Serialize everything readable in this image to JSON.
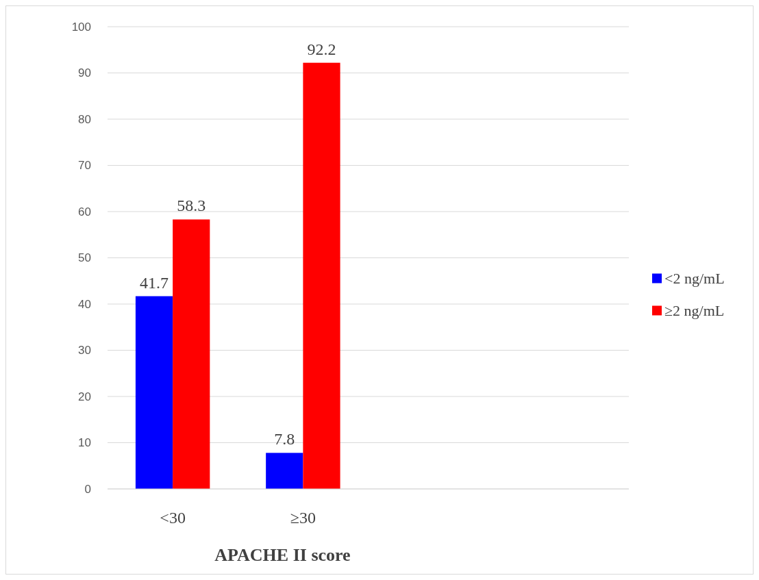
{
  "chart_data": {
    "type": "bar",
    "xlabel": "APACHE II score",
    "categories": [
      "<30",
      "≥30",
      null,
      null
    ],
    "series": [
      {
        "name": "<2 ng/mL",
        "color": "#0000ff",
        "values": [
          41.7,
          7.8,
          null,
          null
        ]
      },
      {
        "name": "≥2 ng/mL",
        "color": "#ff0000",
        "values": [
          58.3,
          92.2,
          null,
          null
        ]
      }
    ],
    "ylim": [
      0,
      100
    ],
    "yticks": [
      0,
      10,
      20,
      30,
      40,
      50,
      60,
      70,
      80,
      90,
      100
    ],
    "grid": "y",
    "legend": "right",
    "data_labels": true
  }
}
